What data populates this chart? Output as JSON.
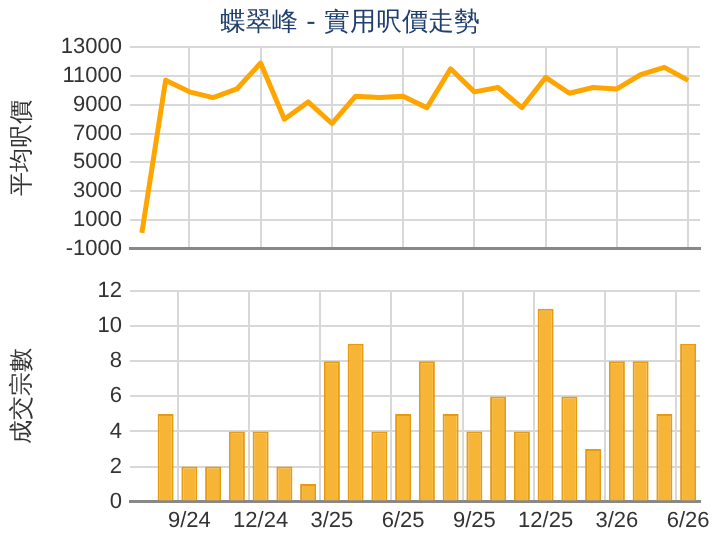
{
  "chart_data": [
    {
      "type": "line",
      "title": "蝶翠峰 - 實用呎價走勢",
      "ylabel": "平均呎價",
      "categories": [
        null,
        null,
        null,
        null,
        null,
        null,
        null,
        null,
        null,
        null,
        null,
        null,
        null,
        null,
        null,
        null,
        null,
        null,
        null,
        null,
        null,
        null,
        null,
        null
      ],
      "series": [
        {
          "color": "#ffa500",
          "values": [
            100,
            10700,
            9900,
            9500,
            10100,
            11900,
            8000,
            9200,
            7700,
            9600,
            9500,
            9600,
            8800,
            11500,
            9900,
            10200,
            8800,
            10900,
            9800,
            10200,
            10100,
            11100,
            11600,
            10700
          ]
        }
      ],
      "ylim": [
        -1000,
        13000
      ],
      "yticks": [
        -1000,
        1000,
        3000,
        5000,
        7000,
        9000,
        11000,
        13000
      ],
      "grid": true,
      "legend": false,
      "tick_labels": "y",
      "marker": "none",
      "line_style": "solid"
    },
    {
      "type": "bar",
      "ylabel": "成交宗數",
      "categories": [
        null,
        null,
        "9/24",
        null,
        null,
        "12/24",
        null,
        null,
        "3/25",
        null,
        null,
        "6/25",
        null,
        null,
        "9/25",
        null,
        null,
        "12/25",
        null,
        null,
        "3/26",
        null,
        null,
        "6/26"
      ],
      "series": [
        {
          "color": "#f7b538",
          "values": [
            0,
            5,
            2,
            2,
            4,
            4,
            2,
            1,
            8,
            9,
            4,
            5,
            8,
            5,
            4,
            6,
            4,
            11,
            6,
            3,
            8,
            8,
            5,
            9
          ]
        }
      ],
      "ylim": [
        0,
        12
      ],
      "yticks": [
        0,
        2,
        4,
        6,
        8,
        10,
        12
      ],
      "grid": true,
      "legend": false
    }
  ]
}
